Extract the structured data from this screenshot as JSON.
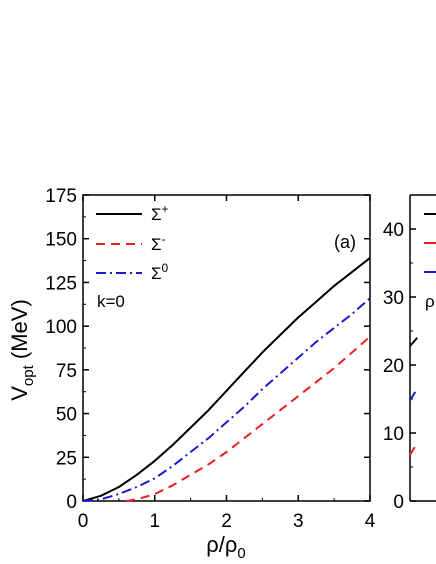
{
  "chart_data": [
    {
      "panel_label": "(a)",
      "type": "line",
      "xlabel": "ρ/ρ₀",
      "ylabel": "V_opt (MeV)",
      "xlim": [
        0,
        4
      ],
      "ylim": [
        0,
        175
      ],
      "xticks": [
        "0",
        "1",
        "2",
        "3",
        "4"
      ],
      "yticks": [
        "0",
        "25",
        "50",
        "75",
        "100",
        "125",
        "150",
        "175"
      ],
      "annotation": "k=0",
      "legend_position": "top-left",
      "series": [
        {
          "name": "Σ+",
          "color": "#000000",
          "style": "solid",
          "x": [
            0,
            0.25,
            0.5,
            0.75,
            1.0,
            1.25,
            1.5,
            1.75,
            2.0,
            2.25,
            2.5,
            2.75,
            3.0,
            3.25,
            3.5,
            3.75,
            4.0
          ],
          "y": [
            0,
            3,
            8,
            15,
            23,
            32,
            42,
            52,
            63,
            74,
            85,
            95,
            105,
            114,
            123,
            131,
            139
          ]
        },
        {
          "name": "Σ-",
          "color": "#e8201e",
          "style": "dashed",
          "x": [
            0.6,
            0.75,
            1.0,
            1.25,
            1.5,
            1.75,
            2.0,
            2.25,
            2.5,
            2.75,
            3.0,
            3.25,
            3.5,
            3.75,
            4.0
          ],
          "y": [
            0,
            1,
            4,
            9,
            15,
            21,
            28,
            36,
            44,
            52,
            60,
            68,
            76,
            85,
            94
          ]
        },
        {
          "name": "Σ0",
          "color": "#1a1ad0",
          "style": "dashdot",
          "x": [
            0,
            0.25,
            0.5,
            0.75,
            1.0,
            1.25,
            1.5,
            1.75,
            2.0,
            2.25,
            2.5,
            2.75,
            3.0,
            3.25,
            3.5,
            3.75,
            4.0
          ],
          "y": [
            0,
            1,
            4,
            8,
            13,
            20,
            28,
            36,
            45,
            54,
            64,
            73,
            82,
            91,
            99,
            107,
            116
          ]
        }
      ]
    },
    {
      "panel_label": "",
      "type": "line",
      "xlabel": "",
      "ylabel": "",
      "ylim": [
        0,
        45
      ],
      "yticks": [
        "0",
        "10",
        "20",
        "30",
        "40"
      ],
      "annotation": "ρ",
      "series": [
        {
          "name": "",
          "color": "#000000",
          "style": "solid",
          "x": [
            0,
            0.1
          ],
          "y": [
            22.8,
            24.0
          ]
        },
        {
          "name": "",
          "color": "#e8201e",
          "style": "dashed",
          "x": [
            0,
            0.1
          ],
          "y": [
            6.8,
            8.5
          ]
        },
        {
          "name": "",
          "color": "#1a1ad0",
          "style": "dashdot",
          "x": [
            0,
            0.1
          ],
          "y": [
            14.8,
            16.5
          ]
        }
      ]
    }
  ],
  "labels": {
    "ylabel_main": "V",
    "ylabel_sub": "opt",
    "ylabel_unit": " (MeV)",
    "xlabel_main": "ρ/ρ",
    "xlabel_sub": "0",
    "legend": [
      {
        "base": "Σ",
        "sup": "+"
      },
      {
        "base": "Σ",
        "sup": "-"
      },
      {
        "base": "Σ",
        "sup": "0"
      }
    ]
  }
}
